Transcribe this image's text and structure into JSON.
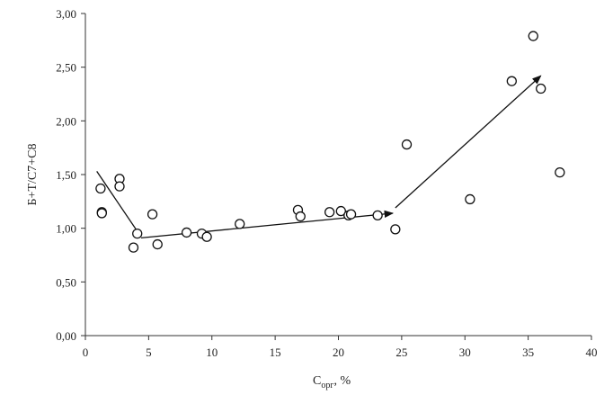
{
  "chart_data": {
    "type": "scatter",
    "xlabel_main": "C",
    "xlabel_sub": "орг",
    "xlabel_suffix": ", %",
    "ylabel": "Б+Т/С7+С8",
    "xlim": [
      0,
      40
    ],
    "ylim": [
      0,
      3
    ],
    "x_ticks": [
      "0",
      "5",
      "10",
      "15",
      "20",
      "25",
      "30",
      "35",
      "40"
    ],
    "y_ticks": [
      "0,00",
      "0,50",
      "1,00",
      "1,50",
      "2,00",
      "2,50",
      "3,00"
    ],
    "grid": false,
    "points": [
      {
        "x": 1.2,
        "y": 1.37
      },
      {
        "x": 1.3,
        "y": 1.15
      },
      {
        "x": 1.3,
        "y": 1.14
      },
      {
        "x": 2.7,
        "y": 1.46
      },
      {
        "x": 2.7,
        "y": 1.39
      },
      {
        "x": 3.8,
        "y": 0.82
      },
      {
        "x": 4.1,
        "y": 0.95
      },
      {
        "x": 5.3,
        "y": 1.13
      },
      {
        "x": 5.7,
        "y": 0.85
      },
      {
        "x": 8.0,
        "y": 0.96
      },
      {
        "x": 9.2,
        "y": 0.95
      },
      {
        "x": 9.6,
        "y": 0.92
      },
      {
        "x": 12.2,
        "y": 1.04
      },
      {
        "x": 16.8,
        "y": 1.17
      },
      {
        "x": 17.0,
        "y": 1.11
      },
      {
        "x": 19.3,
        "y": 1.15
      },
      {
        "x": 20.2,
        "y": 1.16
      },
      {
        "x": 20.8,
        "y": 1.12
      },
      {
        "x": 21.0,
        "y": 1.13
      },
      {
        "x": 23.1,
        "y": 1.12
      },
      {
        "x": 24.5,
        "y": 0.99
      },
      {
        "x": 25.4,
        "y": 1.78
      },
      {
        "x": 30.4,
        "y": 1.27
      },
      {
        "x": 33.7,
        "y": 2.37
      },
      {
        "x": 35.4,
        "y": 2.79
      },
      {
        "x": 36.0,
        "y": 2.3
      },
      {
        "x": 37.5,
        "y": 1.52
      }
    ],
    "trend_lines": [
      {
        "from": {
          "x": 0.9,
          "y": 1.53
        },
        "to": {
          "x": 4.4,
          "y": 0.92
        },
        "arrow": false
      },
      {
        "from": {
          "x": 4.4,
          "y": 0.91
        },
        "to": {
          "x": 24.3,
          "y": 1.14
        },
        "arrow": true
      },
      {
        "from": {
          "x": 24.5,
          "y": 1.19
        },
        "to": {
          "x": 36.0,
          "y": 2.42
        },
        "arrow": true
      }
    ]
  }
}
